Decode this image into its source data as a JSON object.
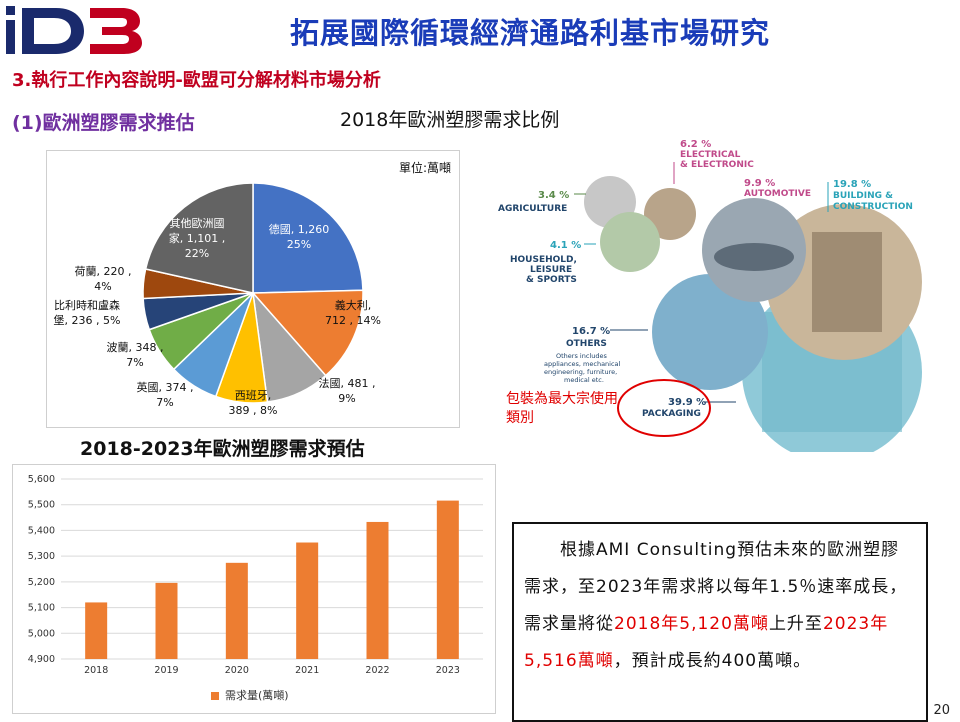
{
  "header": {
    "logo_text": "iD3",
    "title": "拓展國際循環經濟通路利基市場研究",
    "section": "3.執行工作內容說明-歐盟可分解材料市場分析",
    "subsection": "(1)歐洲塑膠需求推估"
  },
  "colors": {
    "title_blue": "#1a3cb8",
    "section_red": "#c0001f",
    "subsection_purple": "#7030a0",
    "bar_orange": "#ed7d31"
  },
  "chart_data": [
    {
      "type": "pie",
      "title": "2018年歐洲塑膠需求比例",
      "unit_note": "單位:萬噸",
      "slices": [
        {
          "name": "德國",
          "value": 1260,
          "percent": 25,
          "label": "德國, 1,260 25%",
          "color": "#4472c4"
        },
        {
          "name": "義大利",
          "value": 712,
          "percent": 14,
          "label": "義大利, 712 , 14%",
          "color": "#ed7d31"
        },
        {
          "name": "法國",
          "value": 481,
          "percent": 9,
          "label": "法國, 481 , 9%",
          "color": "#a5a5a5"
        },
        {
          "name": "西班牙",
          "value": 389,
          "percent": 8,
          "label": "西班牙, 389 , 8%",
          "color": "#ffc000"
        },
        {
          "name": "英國",
          "value": 374,
          "percent": 7,
          "label": "英國, 374 , 7%",
          "color": "#5b9bd5"
        },
        {
          "name": "波蘭",
          "value": 348,
          "percent": 7,
          "label": "波蘭, 348 , 7%",
          "color": "#70ad47"
        },
        {
          "name": "比利時和盧森堡",
          "value": 236,
          "percent": 5,
          "label": "比利時和盧森堡, 236 , 5%",
          "color": "#264478"
        },
        {
          "name": "荷蘭",
          "value": 220,
          "percent": 4,
          "label": "荷蘭, 220 , 4%",
          "color": "#9e480e"
        },
        {
          "name": "其他歐洲國家",
          "value": 1101,
          "percent": 22,
          "label": "其他歐洲國家, 1,101 , 22%",
          "color": "#636363"
        }
      ]
    },
    {
      "type": "bar",
      "title": "2018-2023年歐洲塑膠需求預估",
      "categories": [
        "2018",
        "2019",
        "2020",
        "2021",
        "2022",
        "2023"
      ],
      "series": [
        {
          "name": "需求量(萬噸)",
          "values": [
            5120,
            5196,
            5274,
            5353,
            5433,
            5516
          ],
          "color": "#ed7d31"
        }
      ],
      "y_ticks": [
        "4,900",
        "5,000",
        "5,100",
        "5,200",
        "5,300",
        "5,400",
        "5,500",
        "5,600"
      ],
      "ylim": [
        4900,
        5600
      ],
      "grid": true,
      "legend": "bottom"
    }
  ],
  "infographic": {
    "items": [
      {
        "pct": "6.2 %",
        "label_lines": [
          "ELECTRICAL",
          "& ELECTRONIC"
        ]
      },
      {
        "pct": "3.4 %",
        "label_lines": [
          "AGRICULTURE"
        ]
      },
      {
        "pct": "9.9 %",
        "label_lines": [
          "AUTOMOTIVE"
        ]
      },
      {
        "pct": "19.8 %",
        "label_lines": [
          "BUILDING &",
          "CONSTRUCTION"
        ]
      },
      {
        "pct": "4.1 %",
        "label_lines": [
          "HOUSEHOLD,",
          "LEISURE",
          "& SPORTS"
        ]
      },
      {
        "pct": "16.7 %",
        "label_lines": [
          "OTHERS"
        ],
        "note_lines": [
          "Others includes",
          "appliances, mechanical",
          "engineering, furniture,",
          "medical etc."
        ]
      },
      {
        "pct": "39.9 %",
        "label_lines": [
          "PACKAGING"
        ]
      }
    ],
    "callout": "包裝為最大宗使用類別"
  },
  "text_box": {
    "part1": "根據AMI Consulting預估未來的歐洲塑膠需求，至2023年需求將以每年1.5％速率成長，需求量將從",
    "red1": "2018年5,120萬噸",
    "part2": "上升至",
    "red2": "2023年5,516萬噸",
    "part3": "，預計成長約400萬噸。"
  },
  "page_number": "20"
}
